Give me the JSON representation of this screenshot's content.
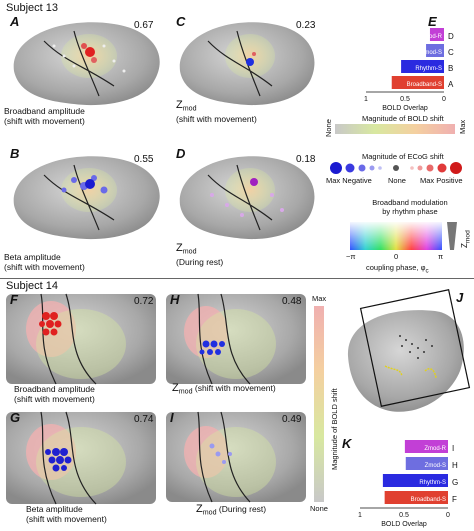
{
  "subject13": {
    "title": "Subject 13",
    "panels": [
      {
        "letter": "A",
        "value": "0.67",
        "cap1": "Broadband amplitude",
        "cap2": "(shift with movement)"
      },
      {
        "letter": "C",
        "value": "0.23",
        "zcap1": "Z",
        "zsub": "mod",
        "cap2": "(shift with movement)"
      },
      {
        "letter": "B",
        "value": "0.55",
        "cap1": "Beta amplitude",
        "cap2": "(shift with movement)"
      },
      {
        "letter": "D",
        "value": "0.18",
        "zcap1": "Z",
        "zsub": "mod",
        "cap2": "(During rest)"
      }
    ],
    "panelE": {
      "letter": "E",
      "bars": [
        {
          "label": "Zmod-R",
          "value": 0.18,
          "color": "#c23fd6",
          "tag": "D"
        },
        {
          "label": "Zmod-S",
          "value": 0.23,
          "color": "#6e6ee0",
          "tag": "C"
        },
        {
          "label": "Rhythm-S",
          "value": 0.55,
          "color": "#2a2ae0",
          "tag": "B"
        },
        {
          "label": "Broadband-S",
          "value": 0.67,
          "color": "#e04030",
          "tag": "A"
        }
      ],
      "ticks": [
        "1",
        "0.5",
        "0"
      ],
      "xlabel": "BOLD Overlap"
    },
    "legends": {
      "bold": {
        "title": "Magnitude of BOLD shift",
        "min": "None",
        "max": "Max"
      },
      "ecog": {
        "title": "Magnitude of ECoG shift",
        "neg": "Max Negative",
        "none": "None",
        "pos": "Max Positive"
      },
      "phase": {
        "title1": "Broadband modulation",
        "title2": "by rhythm phase",
        "t1": "−π",
        "t2": "0",
        "t3": "π",
        "xlabel": "coupling phase, φ",
        "xsub": "c",
        "zlabel": "Z",
        "zsub": "mod"
      }
    }
  },
  "subject14": {
    "title": "Subject 14",
    "panels": [
      {
        "letter": "F",
        "value": "0.72",
        "cap1": "Broadband amplitude",
        "cap2": "(shift with movement)"
      },
      {
        "letter": "H",
        "value": "0.48",
        "zcap1": "Z",
        "zsub": "mod",
        "cap2": "(shift with movement)"
      },
      {
        "letter": "G",
        "value": "0.74",
        "cap1": "Beta amplitude",
        "cap2": "(shift with movement)"
      },
      {
        "letter": "I",
        "value": "0.49",
        "zcap1": "Z",
        "zsub": "mod",
        "cap2": "(During rest)"
      }
    ],
    "vlegend": {
      "title": "Magnitude of BOLD shift",
      "max": "Max",
      "min": "None"
    },
    "panelJ": {
      "letter": "J"
    },
    "panelK": {
      "letter": "K",
      "bars": [
        {
          "label": "Zmod-R",
          "value": 0.49,
          "color": "#c23fd6",
          "tag": "I"
        },
        {
          "label": "Zmod-S",
          "value": 0.48,
          "color": "#6e6ee0",
          "tag": "H"
        },
        {
          "label": "Rhythm-S",
          "value": 0.74,
          "color": "#2a2ae0",
          "tag": "G"
        },
        {
          "label": "Broadband-S",
          "value": 0.72,
          "color": "#e04030",
          "tag": "F"
        }
      ],
      "ticks": [
        "1",
        "0.5",
        "0"
      ],
      "xlabel": "BOLD Overlap"
    }
  }
}
